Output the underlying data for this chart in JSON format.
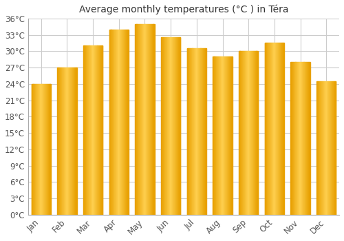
{
  "title": "Average monthly temperatures (°C ) in Téra",
  "months": [
    "Jan",
    "Feb",
    "Mar",
    "Apr",
    "May",
    "Jun",
    "Jul",
    "Aug",
    "Sep",
    "Oct",
    "Nov",
    "Dec"
  ],
  "temperatures": [
    24.0,
    27.0,
    31.0,
    34.0,
    35.0,
    32.5,
    30.5,
    29.0,
    30.0,
    31.5,
    28.0,
    24.5
  ],
  "bar_color_edge": "#E8A000",
  "bar_color_center": "#FFD050",
  "ylim": [
    0,
    36
  ],
  "ytick_step": 3,
  "background_color": "#ffffff",
  "plot_bg_color": "#ffffff",
  "grid_color": "#cccccc",
  "title_fontsize": 10,
  "tick_fontsize": 8.5,
  "bar_width": 0.75
}
